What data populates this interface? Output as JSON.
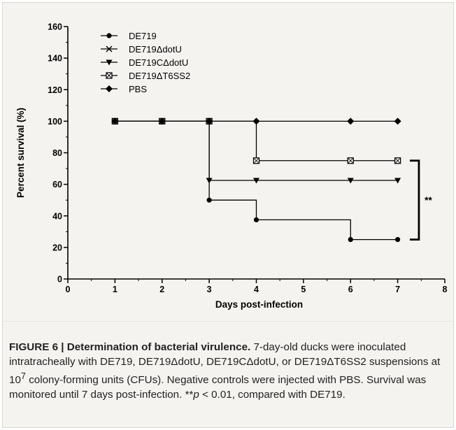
{
  "chart_data": {
    "type": "line",
    "subtype": "survival-step",
    "xlabel": "Days post-infection",
    "ylabel": "Percent survival (%)",
    "xlim": [
      0,
      8
    ],
    "ylim": [
      0,
      160
    ],
    "xticks": [
      0,
      1,
      2,
      3,
      4,
      5,
      6,
      7,
      8
    ],
    "yticks": [
      0,
      20,
      40,
      60,
      80,
      100,
      120,
      140,
      160
    ],
    "grid": false,
    "legend_position": "top-left",
    "series": [
      {
        "name": "DE719",
        "marker": "circle",
        "x": [
          1,
          2,
          3,
          4,
          6,
          7
        ],
        "y": [
          100,
          100,
          50,
          37.5,
          25,
          25
        ]
      },
      {
        "name": "DE719ΔdotU",
        "marker": "x",
        "x": [
          1,
          2,
          3
        ],
        "y": [
          100,
          100,
          100
        ]
      },
      {
        "name": "DE719CΔdotU",
        "marker": "triangle-down",
        "x": [
          1,
          2,
          3,
          4,
          6,
          7
        ],
        "y": [
          100,
          100,
          62.5,
          62.5,
          62.5,
          62.5
        ]
      },
      {
        "name": "DE719ΔT6SS2",
        "marker": "square-x",
        "x": [
          1,
          2,
          3,
          4,
          6,
          7
        ],
        "y": [
          100,
          100,
          100,
          75,
          75,
          75
        ]
      },
      {
        "name": "PBS",
        "marker": "diamond",
        "x": [
          1,
          2,
          3,
          4,
          6,
          7
        ],
        "y": [
          100,
          100,
          100,
          100,
          100,
          100
        ]
      }
    ],
    "annotations": [
      {
        "text": "**",
        "bracket_y": [
          75,
          25
        ]
      }
    ]
  },
  "caption": {
    "label": "FIGURE 6 |",
    "title": "Determination of bacterial virulence.",
    "text_part1": "7-day-old ducks were inoculated intratracheally with DE719, DE719ΔdotU, DE719CΔdotU, or DE719ΔT6SS2 suspensions at 10",
    "superscript": "7",
    "text_part2": "colony-forming units (CFUs). Negative controls were injected with PBS. Survival was monitored until 7 days post-infection. **",
    "p_var": "p",
    "text_part3": "< 0.01, compared with DE719."
  },
  "colors": {
    "background": "#f4f3f0",
    "series": "#000000"
  }
}
